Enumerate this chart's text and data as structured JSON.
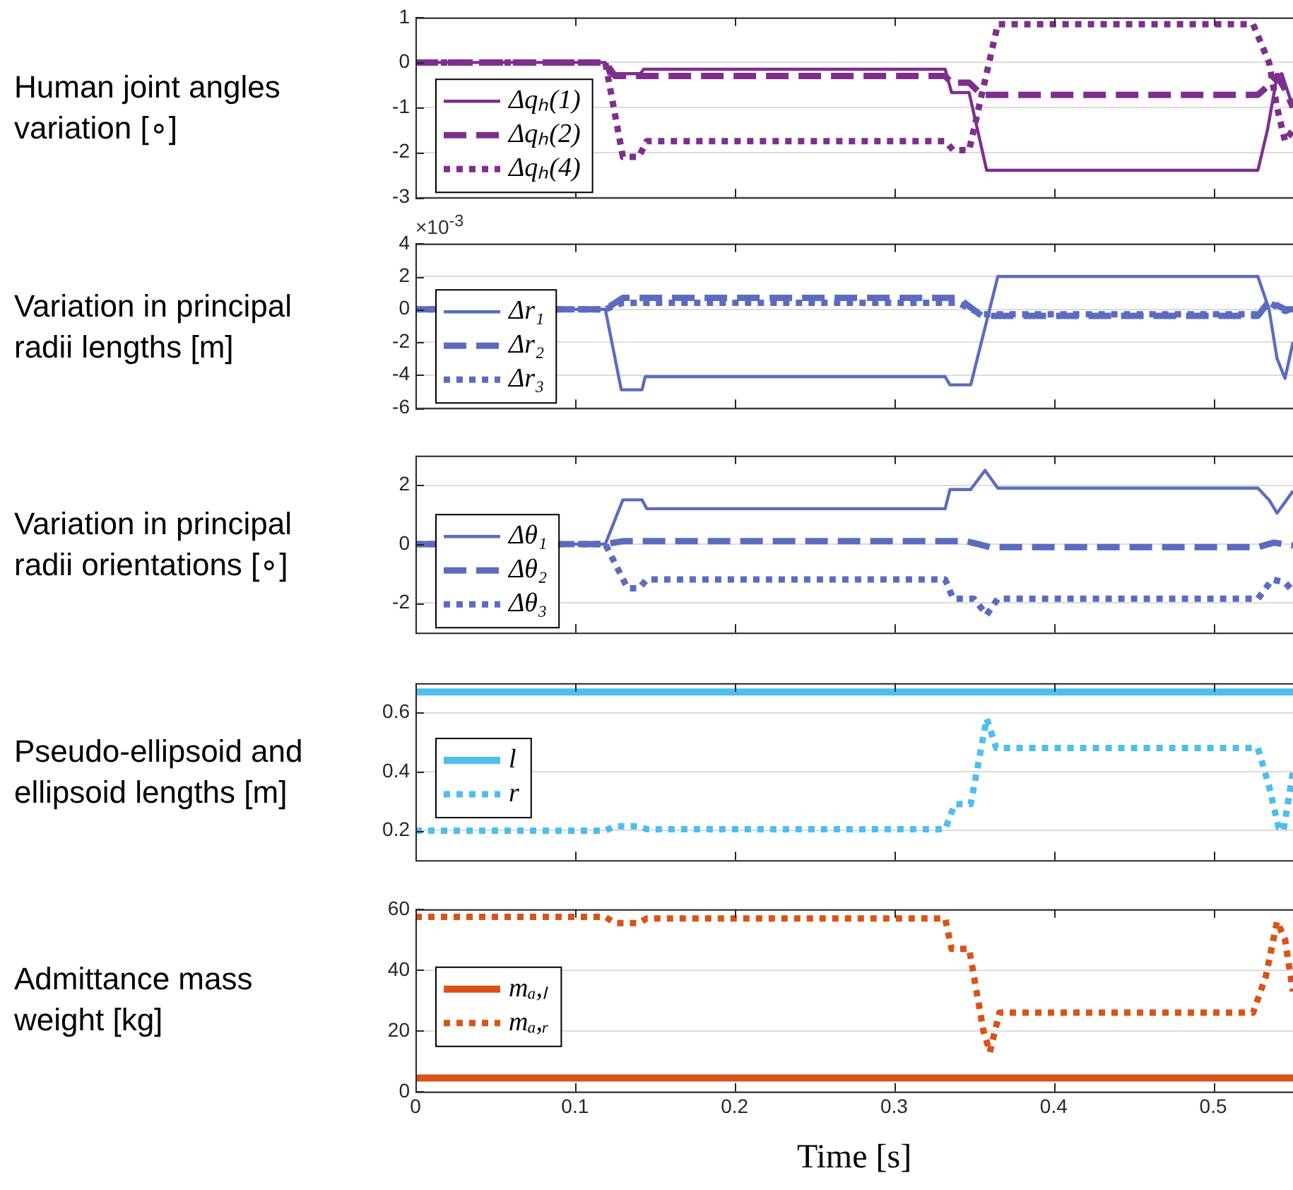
{
  "chart_data": [
    {
      "type": "line",
      "ylabel": "Human joint angles\nvariation [∘]",
      "xlim": [
        0,
        0.55
      ],
      "xticks": [
        0,
        0.1,
        0.2,
        0.3,
        0.4,
        0.5
      ],
      "ylim": [
        -3,
        1
      ],
      "yticks": [
        -3,
        -2,
        -1,
        0,
        1
      ],
      "grid": "y",
      "legend": "bottom left",
      "tick_labels": "y",
      "series": [
        {
          "name": "Δqₕ(1)",
          "color": "#7e2f8e",
          "line_style": "solid",
          "x": [
            0,
            0.119,
            0.121,
            0.141,
            0.143,
            0.332,
            0.336,
            0.347,
            0.358,
            0.528,
            0.534,
            0.54,
            0.543,
            0.55
          ],
          "values": [
            0,
            0,
            -0.25,
            -0.25,
            -0.15,
            -0.15,
            -0.67,
            -0.67,
            -2.4,
            -2.4,
            -1.5,
            -0.3,
            -0.25,
            -1
          ]
        },
        {
          "name": "Δqₕ(2)",
          "color": "#7e2f8e",
          "line_style": "dashed",
          "x": [
            0,
            0.119,
            0.125,
            0.332,
            0.336,
            0.347,
            0.355,
            0.528,
            0.535,
            0.54,
            0.545,
            0.55
          ],
          "values": [
            0,
            0,
            -0.3,
            -0.3,
            -0.45,
            -0.45,
            -0.72,
            -0.72,
            -0.5,
            -0.3,
            -0.6,
            -1
          ]
        },
        {
          "name": "Δqₕ(4)",
          "color": "#7e2f8e",
          "line_style": "dotted",
          "x": [
            0,
            0.119,
            0.13,
            0.14,
            0.145,
            0.332,
            0.337,
            0.347,
            0.365,
            0.525,
            0.535,
            0.54,
            0.545,
            0.55
          ],
          "values": [
            0,
            0,
            -2.1,
            -2.1,
            -1.75,
            -1.75,
            -1.95,
            -1.95,
            0.85,
            0.85,
            0,
            -1,
            -1.75,
            -1.5
          ]
        }
      ]
    },
    {
      "type": "line",
      "ylabel": "Variation in principal\nradii lengths [m]",
      "annotations": [
        "×10$^{-3}$"
      ],
      "xlim": [
        0,
        0.55
      ],
      "xticks": [
        0,
        0.1,
        0.2,
        0.3,
        0.4,
        0.5
      ],
      "ylim": [
        -6,
        4
      ],
      "yticks": [
        -6,
        -4,
        -2,
        0,
        2,
        4
      ],
      "grid": "y",
      "legend": "bottom left",
      "tick_labels": "y",
      "series": [
        {
          "name": "Δr₁",
          "color": "#5b6cbf",
          "line_style": "solid",
          "x": [
            0,
            0.119,
            0.129,
            0.142,
            0.144,
            0.332,
            0.335,
            0.348,
            0.365,
            0.528,
            0.535,
            0.54,
            0.545,
            0.55
          ],
          "values": [
            0,
            0,
            -4.9,
            -4.9,
            -4.1,
            -4.1,
            -4.6,
            -4.6,
            2,
            2,
            0,
            -3,
            -4.2,
            -2
          ]
        },
        {
          "name": "Δr₂",
          "color": "#5b6cbf",
          "line_style": "dashed",
          "x": [
            0,
            0.119,
            0.13,
            0.34,
            0.355,
            0.528,
            0.535,
            0.545,
            0.55
          ],
          "values": [
            0,
            0,
            0.7,
            0.7,
            -0.4,
            -0.4,
            0.5,
            0,
            0
          ]
        },
        {
          "name": "Δr₃",
          "color": "#5b6cbf",
          "line_style": "dotted",
          "x": [
            0,
            0.119,
            0.13,
            0.34,
            0.355,
            0.528,
            0.535,
            0.545,
            0.55
          ],
          "values": [
            0,
            0,
            0.4,
            0.4,
            -0.3,
            -0.3,
            0.4,
            -0.1,
            0
          ]
        }
      ]
    },
    {
      "type": "line",
      "ylabel": "Variation in principal\nradii orientations [∘]",
      "xlim": [
        0,
        0.55
      ],
      "xticks": [
        0,
        0.1,
        0.2,
        0.3,
        0.4,
        0.5
      ],
      "ylim": [
        -3,
        3
      ],
      "yticks": [
        -2,
        0,
        2
      ],
      "grid": "y",
      "legend": "bottom left",
      "tick_labels": "y",
      "series": [
        {
          "name": "Δθ₁",
          "color": "#5b6cbf",
          "line_style": "solid",
          "x": [
            0,
            0.119,
            0.13,
            0.142,
            0.145,
            0.332,
            0.335,
            0.348,
            0.357,
            0.365,
            0.528,
            0.535,
            0.54,
            0.55
          ],
          "values": [
            0,
            0,
            1.5,
            1.5,
            1.2,
            1.2,
            1.85,
            1.85,
            2.5,
            1.9,
            1.9,
            1.5,
            1.05,
            1.8
          ]
        },
        {
          "name": "Δθ₂",
          "color": "#5b6cbf",
          "line_style": "dashed",
          "x": [
            0,
            0.119,
            0.13,
            0.345,
            0.36,
            0.528,
            0.538,
            0.55
          ],
          "values": [
            0,
            0,
            0.1,
            0.1,
            -0.1,
            -0.1,
            0.05,
            -0.05
          ]
        },
        {
          "name": "Δθ₃",
          "color": "#5b6cbf",
          "line_style": "dotted",
          "x": [
            0,
            0.119,
            0.133,
            0.14,
            0.145,
            0.332,
            0.337,
            0.35,
            0.358,
            0.365,
            0.528,
            0.537,
            0.545,
            0.55
          ],
          "values": [
            0,
            0,
            -1.5,
            -1.5,
            -1.2,
            -1.2,
            -1.85,
            -1.85,
            -2.4,
            -1.85,
            -1.85,
            -1.2,
            -1.3,
            -1.6
          ]
        }
      ]
    },
    {
      "type": "line",
      "ylabel": "Pseudo-ellipsoid and\nellipsoid lengths [m]",
      "xlim": [
        0,
        0.55
      ],
      "xticks": [
        0,
        0.1,
        0.2,
        0.3,
        0.4,
        0.5
      ],
      "ylim": [
        0.1,
        0.7
      ],
      "yticks": [
        0.2,
        0.4,
        0.6
      ],
      "grid": "y",
      "legend": "left",
      "tick_labels": "y",
      "series": [
        {
          "name": "l",
          "color": "#4dbeee",
          "line_style": "solid",
          "x": [
            0,
            0.55
          ],
          "values": [
            0.67,
            0.67
          ]
        },
        {
          "name": "r",
          "color": "#4dbeee",
          "line_style": "dotted",
          "x": [
            0,
            0.119,
            0.125,
            0.14,
            0.145,
            0.332,
            0.338,
            0.348,
            0.358,
            0.364,
            0.528,
            0.535,
            0.541,
            0.544,
            0.55
          ],
          "values": [
            0.2,
            0.2,
            0.215,
            0.215,
            0.205,
            0.205,
            0.29,
            0.29,
            0.58,
            0.48,
            0.48,
            0.35,
            0.21,
            0.2,
            0.4
          ]
        }
      ]
    },
    {
      "type": "line",
      "ylabel": "Admittance mass\nweight [kg]",
      "xlabel": "Time [s]",
      "xlim": [
        0,
        0.55
      ],
      "xticks": [
        0,
        0.1,
        0.2,
        0.3,
        0.4,
        0.5
      ],
      "ylim": [
        0,
        60
      ],
      "yticks": [
        0,
        20,
        40,
        60
      ],
      "grid": "y",
      "legend": "left",
      "series": [
        {
          "name": "mₐ,ₗ",
          "color": "#d95319",
          "line_style": "solid",
          "x": [
            0,
            0.55
          ],
          "values": [
            4.5,
            4.5
          ]
        },
        {
          "name": "mₐ,ᵣ",
          "color": "#d95319",
          "line_style": "dotted",
          "x": [
            0,
            0.119,
            0.125,
            0.14,
            0.145,
            0.332,
            0.336,
            0.347,
            0.356,
            0.36,
            0.366,
            0.525,
            0.533,
            0.54,
            0.545,
            0.55
          ],
          "values": [
            57.5,
            57.5,
            55.5,
            55.5,
            57,
            57,
            47,
            47,
            20,
            13,
            26,
            26,
            38,
            56,
            50,
            33
          ]
        }
      ]
    }
  ]
}
